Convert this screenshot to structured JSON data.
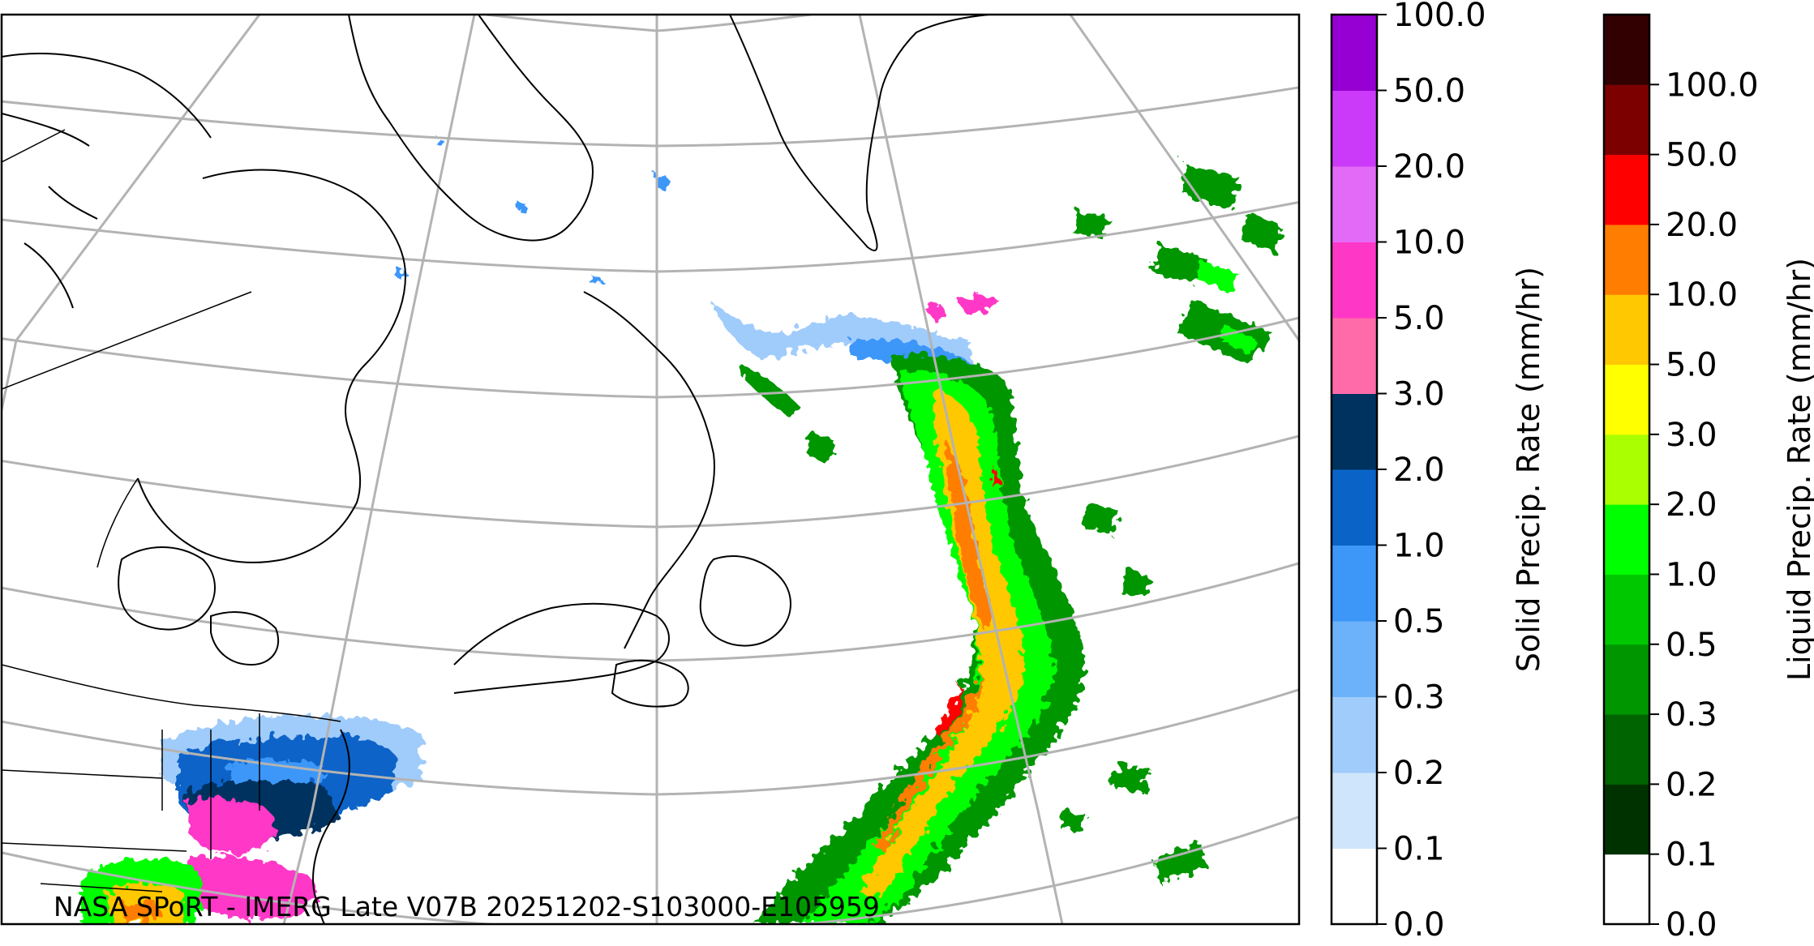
{
  "map": {
    "credit": "NASA SPoRT - IMERG Late V07B 20251202-S103000-E105959",
    "graticule_color": "#b3b3b3",
    "coastline_color": "#000000"
  },
  "solid_colorbar": {
    "title": "Solid Precip. Rate (mm/hr)",
    "ticks": [
      "0.0",
      "0.1",
      "0.2",
      "0.3",
      "0.5",
      "1.0",
      "2.0",
      "3.0",
      "5.0",
      "10.0",
      "20.0",
      "50.0",
      "100.0"
    ],
    "colors": [
      "#ffffff",
      "#cfe5fc",
      "#a0ccfb",
      "#6cb2fa",
      "#3c97f9",
      "#0a64c8",
      "#00325f",
      "#ff6aa9",
      "#ff37c7",
      "#e36af7",
      "#ca3af8",
      "#9600d2"
    ]
  },
  "liquid_colorbar": {
    "title": "Liquid Precip. Rate (mm/hr)",
    "ticks": [
      "0.0",
      "0.1",
      "0.2",
      "0.3",
      "0.5",
      "1.0",
      "2.0",
      "3.0",
      "5.0",
      "10.0",
      "20.0",
      "50.0",
      "100.0"
    ],
    "colors": [
      "#ffffff",
      "#003200",
      "#006400",
      "#009600",
      "#00c800",
      "#00ff00",
      "#aaff00",
      "#ffff00",
      "#ffc800",
      "#ff7d00",
      "#ff0000",
      "#7d0000",
      "#320000"
    ]
  }
}
